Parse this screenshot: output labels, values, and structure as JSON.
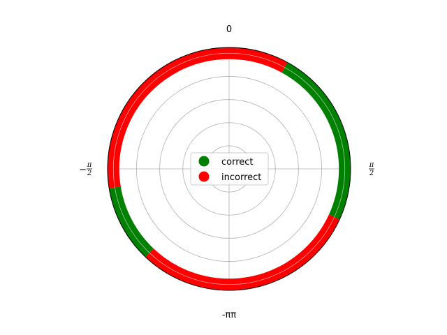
{
  "chart_data": {
    "type": "polar",
    "theta_zero_location": "top",
    "theta_direction": "clockwise",
    "angular_ticks": [
      {
        "value": 0,
        "label": "0"
      },
      {
        "value": 1.5708,
        "numerator": "π",
        "denominator": "2"
      },
      {
        "value": 3.1416,
        "label": "-ππ"
      },
      {
        "value": -1.5708,
        "prefix": "−",
        "numerator": "π",
        "denominator": "2"
      }
    ],
    "radial_grid": [
      0.2,
      0.4,
      0.6,
      0.8,
      1.0
    ],
    "rlim": [
      0,
      1.05
    ],
    "grid": true,
    "series": [
      {
        "name": "correct",
        "color": "#008000",
        "marker": "circle",
        "r": 1.0,
        "theta_ranges": [
          [
            0.5,
            2.0
          ],
          [
            3.9,
            4.55
          ]
        ]
      },
      {
        "name": "incorrect",
        "color": "#ff0000",
        "marker": "circle",
        "r": 1.0,
        "theta_ranges": [
          [
            2.0,
            3.9
          ],
          [
            4.55,
            6.783
          ]
        ]
      }
    ],
    "legend": {
      "placement": "center",
      "entries": [
        "correct",
        "incorrect"
      ]
    }
  }
}
